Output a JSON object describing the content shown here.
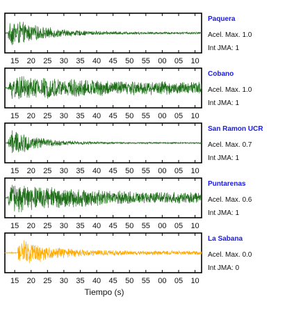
{
  "chart_data": {
    "type": "line",
    "xlabel": "Tiempo (s)",
    "x_tick_labels": [
      "15",
      "20",
      "25",
      "30",
      "35",
      "40",
      "45",
      "50",
      "55",
      "00",
      "05",
      "10"
    ],
    "x_range_seconds": [
      12,
      72
    ],
    "accel_label": "Acel. Max.",
    "intensity_label": "Int JMA:",
    "stations": [
      {
        "name": "Paquera",
        "accel_max": "1.0",
        "int_jma": "1",
        "color": "#1f6e1a",
        "onset": 13,
        "peak_amp": 0.95,
        "decay": 10,
        "floor": 0.06
      },
      {
        "name": "Cobano",
        "accel_max": "1.0",
        "int_jma": "1",
        "color": "#1f6e1a",
        "onset": 13,
        "peak_amp": 0.75,
        "decay": 30,
        "floor": 0.3
      },
      {
        "name": "San Ramon UCR",
        "accel_max": "0.7",
        "int_jma": "1",
        "color": "#1f6e1a",
        "onset": 13,
        "peak_amp": 0.95,
        "decay": 8,
        "floor": 0.04
      },
      {
        "name": "Puntarenas",
        "accel_max": "0.6",
        "int_jma": "1",
        "color": "#1f6e1a",
        "onset": 13,
        "peak_amp": 0.9,
        "decay": 25,
        "floor": 0.25
      },
      {
        "name": "La Sabana",
        "accel_max": "0.0",
        "int_jma": "0",
        "color": "#ffaa00",
        "onset": 16,
        "peak_amp": 0.95,
        "decay": 9,
        "floor": 0.12
      }
    ]
  }
}
